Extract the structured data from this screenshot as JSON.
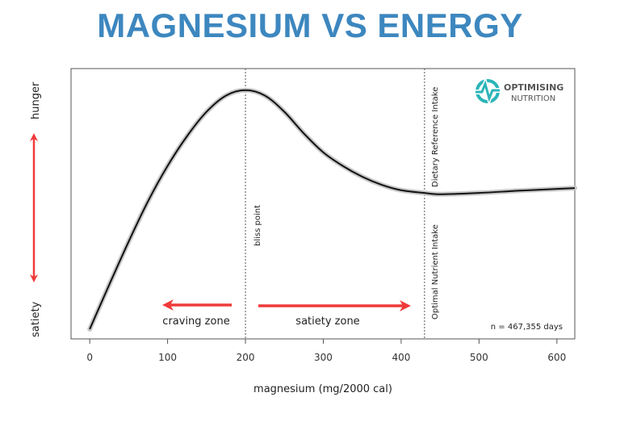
{
  "chart_data": {
    "type": "line",
    "title": "MAGNESIUM VS ENERGY",
    "xlabel": "magnesium (mg/2000 cal)",
    "ylabel_top": "hunger",
    "ylabel_bottom": "satiety",
    "xlim": [
      -24,
      623
    ],
    "ylim": [
      0,
      1
    ],
    "xticks": [
      0,
      100,
      200,
      300,
      400,
      500,
      600
    ],
    "grid": false,
    "series": [
      {
        "x": [
          0,
          25,
          50,
          75,
          100,
          125,
          150,
          175,
          200,
          225,
          250,
          275,
          300,
          325,
          350,
          375,
          400,
          430,
          450,
          500,
          550,
          600,
          623
        ],
        "y": [
          0.036,
          0.2,
          0.36,
          0.51,
          0.64,
          0.75,
          0.84,
          0.9,
          0.92,
          0.9,
          0.84,
          0.76,
          0.69,
          0.64,
          0.6,
          0.57,
          0.55,
          0.54,
          0.535,
          0.54,
          0.548,
          0.555,
          0.558
        ],
        "color": "#111111"
      }
    ],
    "vlines": [
      {
        "x": 200,
        "label": "bliss point"
      },
      {
        "x": 430,
        "label_top": "Dietary Reference Intake",
        "label_bottom": "Optimal Nutrient Intake"
      }
    ],
    "annotations": {
      "craving": "craving zone",
      "satiety": "satiety zone",
      "n": "n = 467,355 days"
    },
    "logo": {
      "line1": "OPTIMISING",
      "line2": "NUTRITION"
    },
    "colors": {
      "title": "#3d87bf",
      "arrows": "#f03a3a",
      "logo": "#2bb5b8",
      "logo_text": "#555555"
    }
  }
}
